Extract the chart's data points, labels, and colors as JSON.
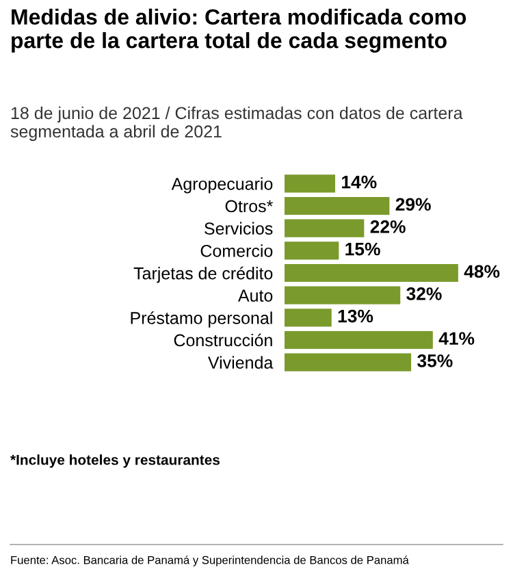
{
  "chart_data": {
    "type": "bar",
    "orientation": "horizontal",
    "title": "Medidas de alivio: Cartera modificada como parte de la cartera total de cada segmento",
    "subtitle": "18 de junio de 2021 / Cifras estimadas con datos de cartera segmentada a abril de 2021",
    "categories": [
      "Agropecuario",
      "Otros*",
      "Servicios",
      "Comercio",
      "Tarjetas de crédito",
      "Auto",
      "Préstamo personal",
      "Construcción",
      "Vivienda"
    ],
    "values": [
      14,
      29,
      22,
      15,
      48,
      32,
      13,
      41,
      35
    ],
    "value_labels": [
      "14%",
      "29%",
      "22%",
      "15%",
      "48%",
      "32%",
      "13%",
      "41%",
      "35%"
    ],
    "color": "#7b9a2c",
    "grid": false,
    "legend": false,
    "annotations": [
      "*Incluye hoteles y restaurantes",
      "Fuente: Asoc. Bancaria de Panamá y Superintendencia de Bancos de Panamá"
    ]
  }
}
